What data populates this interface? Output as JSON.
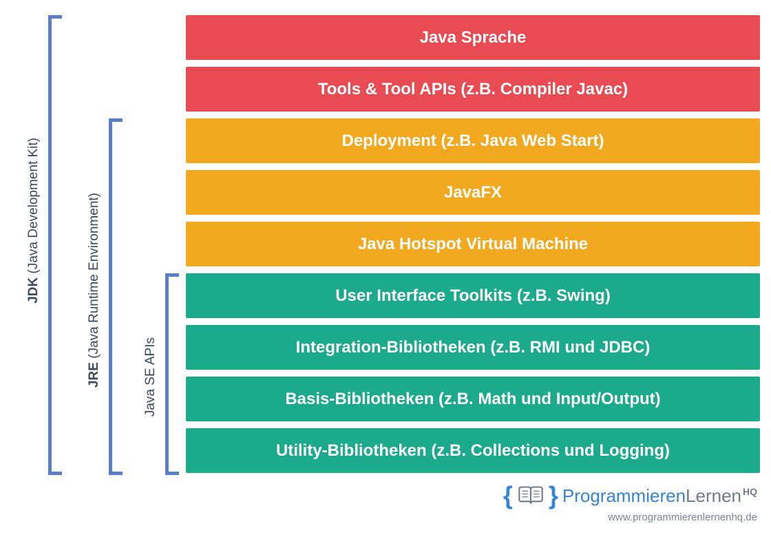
{
  "colors": {
    "bracketJdk": "#5b7fc7",
    "bracketJre": "#5b7fc7",
    "bracketApis": "#5b7fc7",
    "labelText": "#3b4a5c",
    "red": "#e94b52",
    "orange": "#f3a91f",
    "green": "#1caa8c",
    "logoBlue": "#3585d6",
    "logoGray": "#6e7b8a",
    "urlGray": "#7a8593"
  },
  "brackets": {
    "jdk": {
      "bold": "JDK",
      "normal": " (Java Development Kit)"
    },
    "jre": {
      "bold": "JRE",
      "normal": " (Java Runtime Environment)"
    },
    "apis": {
      "text": "Java SE APIs"
    }
  },
  "bars": [
    {
      "label": "Java Sprache",
      "colorKey": "red"
    },
    {
      "label": "Tools & Tool APIs (z.B. Compiler Javac)",
      "colorKey": "red"
    },
    {
      "label": "Deployment (z.B. Java Web Start)",
      "colorKey": "orange"
    },
    {
      "label": "JavaFX",
      "colorKey": "orange"
    },
    {
      "label": "Java Hotspot Virtual Machine",
      "colorKey": "orange"
    },
    {
      "label": "User Interface Toolkits (z.B. Swing)",
      "colorKey": "green"
    },
    {
      "label": "Integration-Bibliotheken (z.B. RMI und JDBC)",
      "colorKey": "green"
    },
    {
      "label": "Basis-Bibliotheken (z.B. Math und Input/Output)",
      "colorKey": "green"
    },
    {
      "label": "Utility-Bibliotheken (z.B. Collections und Logging)",
      "colorKey": "green"
    }
  ],
  "footer": {
    "braceOpen": "{",
    "braceClose": "}",
    "logoPart1": "Programmieren",
    "logoPart2": "Lernen",
    "logoSuffix": "HQ",
    "url": "www.programmierenlernenhq.de"
  },
  "layout": {
    "barHeight": 65,
    "barGap": 10,
    "barsLeft": 270,
    "barsTop": 22,
    "barsWidth": 834,
    "fontSize": 24
  }
}
